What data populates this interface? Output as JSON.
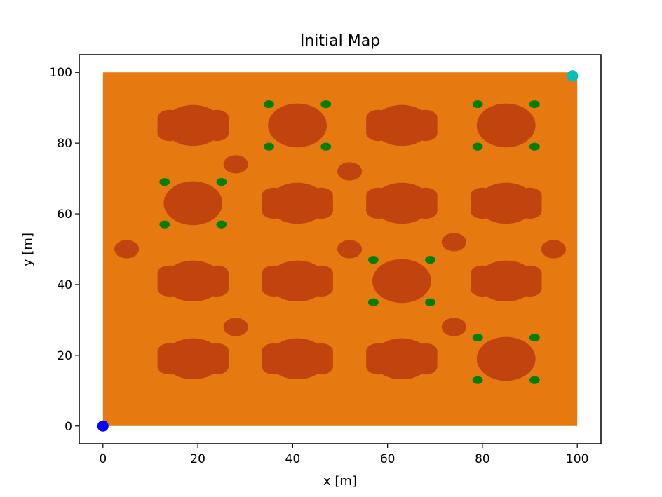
{
  "chart_data": {
    "type": "scatter",
    "title": "Initial Map",
    "xlabel": "x [m]",
    "ylabel": "y [m]",
    "xlim": [
      -5,
      105
    ],
    "ylim": [
      -5,
      105
    ],
    "xticks": [
      0,
      20,
      40,
      60,
      80,
      100
    ],
    "yticks": [
      0,
      20,
      40,
      60,
      80,
      100
    ],
    "grid": false,
    "colors": {
      "field": "#e67a11",
      "obstacle": "#c1440e",
      "marker": "#008000",
      "start": "#0000ff",
      "goal": "#00bfbf"
    },
    "field": {
      "x0": 0,
      "y0": 0,
      "x1": 100,
      "y1": 100
    },
    "obstacle_lobed": [
      [
        19,
        85
      ],
      [
        63,
        85
      ],
      [
        41,
        63
      ],
      [
        63,
        63
      ],
      [
        85,
        63
      ],
      [
        19,
        41
      ],
      [
        41,
        41
      ],
      [
        85,
        41
      ],
      [
        19,
        19
      ],
      [
        41,
        19
      ],
      [
        63,
        19
      ]
    ],
    "obstacle_round_marked": [
      [
        41,
        85
      ],
      [
        85,
        85
      ],
      [
        19,
        63
      ],
      [
        63,
        41
      ],
      [
        85,
        19
      ]
    ],
    "obstacle_small": [
      [
        28,
        74
      ],
      [
        52,
        72
      ],
      [
        5,
        50
      ],
      [
        52,
        50
      ],
      [
        74,
        52
      ],
      [
        95,
        50
      ],
      [
        28,
        28
      ],
      [
        74,
        28
      ]
    ],
    "start": [
      0,
      0
    ],
    "goal": [
      99,
      99
    ]
  }
}
